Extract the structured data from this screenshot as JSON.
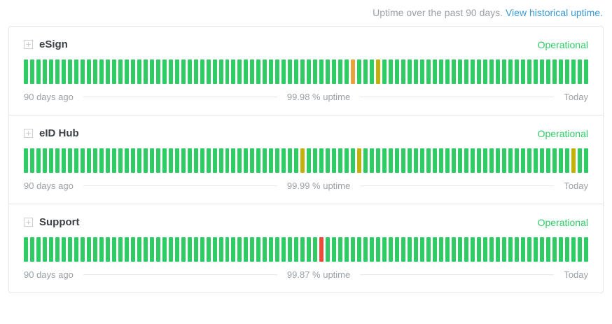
{
  "header": {
    "caption": "Uptime over the past 90 days.",
    "link_label": "View historical uptime."
  },
  "colors": {
    "green": "#2fcc66",
    "yellow": "#c2b10c",
    "orange": "#e8a33d",
    "red": "#e74c3c"
  },
  "services": [
    {
      "name": "eSign",
      "status": "Operational",
      "left_label": "90 days ago",
      "uptime_label": "99.98 % uptime",
      "right_label": "Today",
      "total_bars": 90,
      "special_bars": [
        {
          "index": 52,
          "color": "orange"
        },
        {
          "index": 56,
          "color": "yellow"
        }
      ]
    },
    {
      "name": "eID Hub",
      "status": "Operational",
      "left_label": "90 days ago",
      "uptime_label": "99.99 % uptime",
      "right_label": "Today",
      "total_bars": 90,
      "special_bars": [
        {
          "index": 44,
          "color": "yellow"
        },
        {
          "index": 53,
          "color": "yellow"
        },
        {
          "index": 87,
          "color": "yellow"
        }
      ]
    },
    {
      "name": "Support",
      "status": "Operational",
      "left_label": "90 days ago",
      "uptime_label": "99.87 % uptime",
      "right_label": "Today",
      "total_bars": 90,
      "special_bars": [
        {
          "index": 47,
          "color": "red"
        }
      ]
    }
  ]
}
